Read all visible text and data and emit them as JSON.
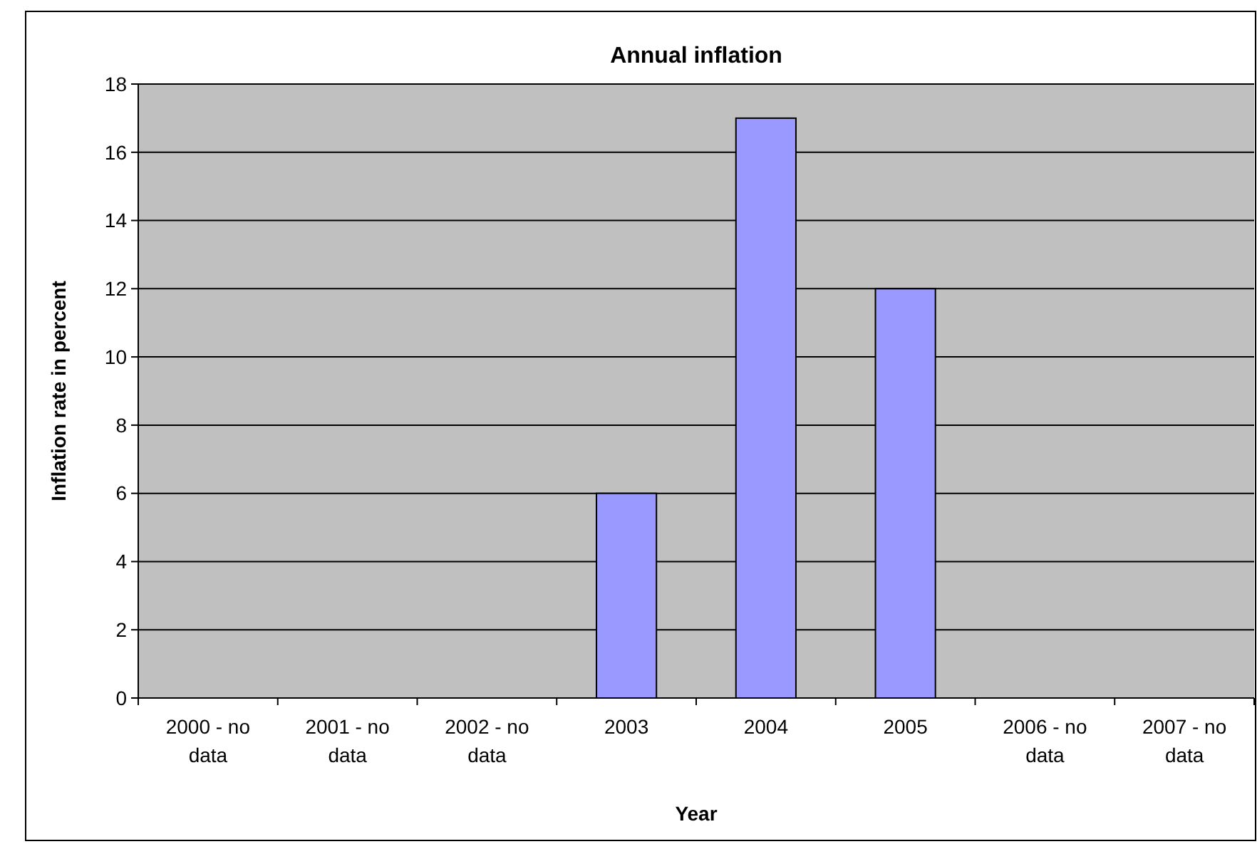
{
  "chart_data": {
    "type": "bar",
    "title": "Annual inflation",
    "xlabel": "Year",
    "ylabel": "Inflation rate in percent",
    "categories": [
      "2000 - no data",
      "2001 - no data",
      "2002 - no data",
      "2003",
      "2004",
      "2005",
      "2006 - no data",
      "2007 - no data"
    ],
    "values": [
      null,
      null,
      null,
      6,
      17,
      12,
      null,
      null
    ],
    "color": "#9999ff",
    "ylim": [
      0,
      18
    ],
    "yticks": [
      0,
      2,
      4,
      6,
      8,
      10,
      12,
      14,
      16,
      18
    ],
    "grid": "y"
  }
}
